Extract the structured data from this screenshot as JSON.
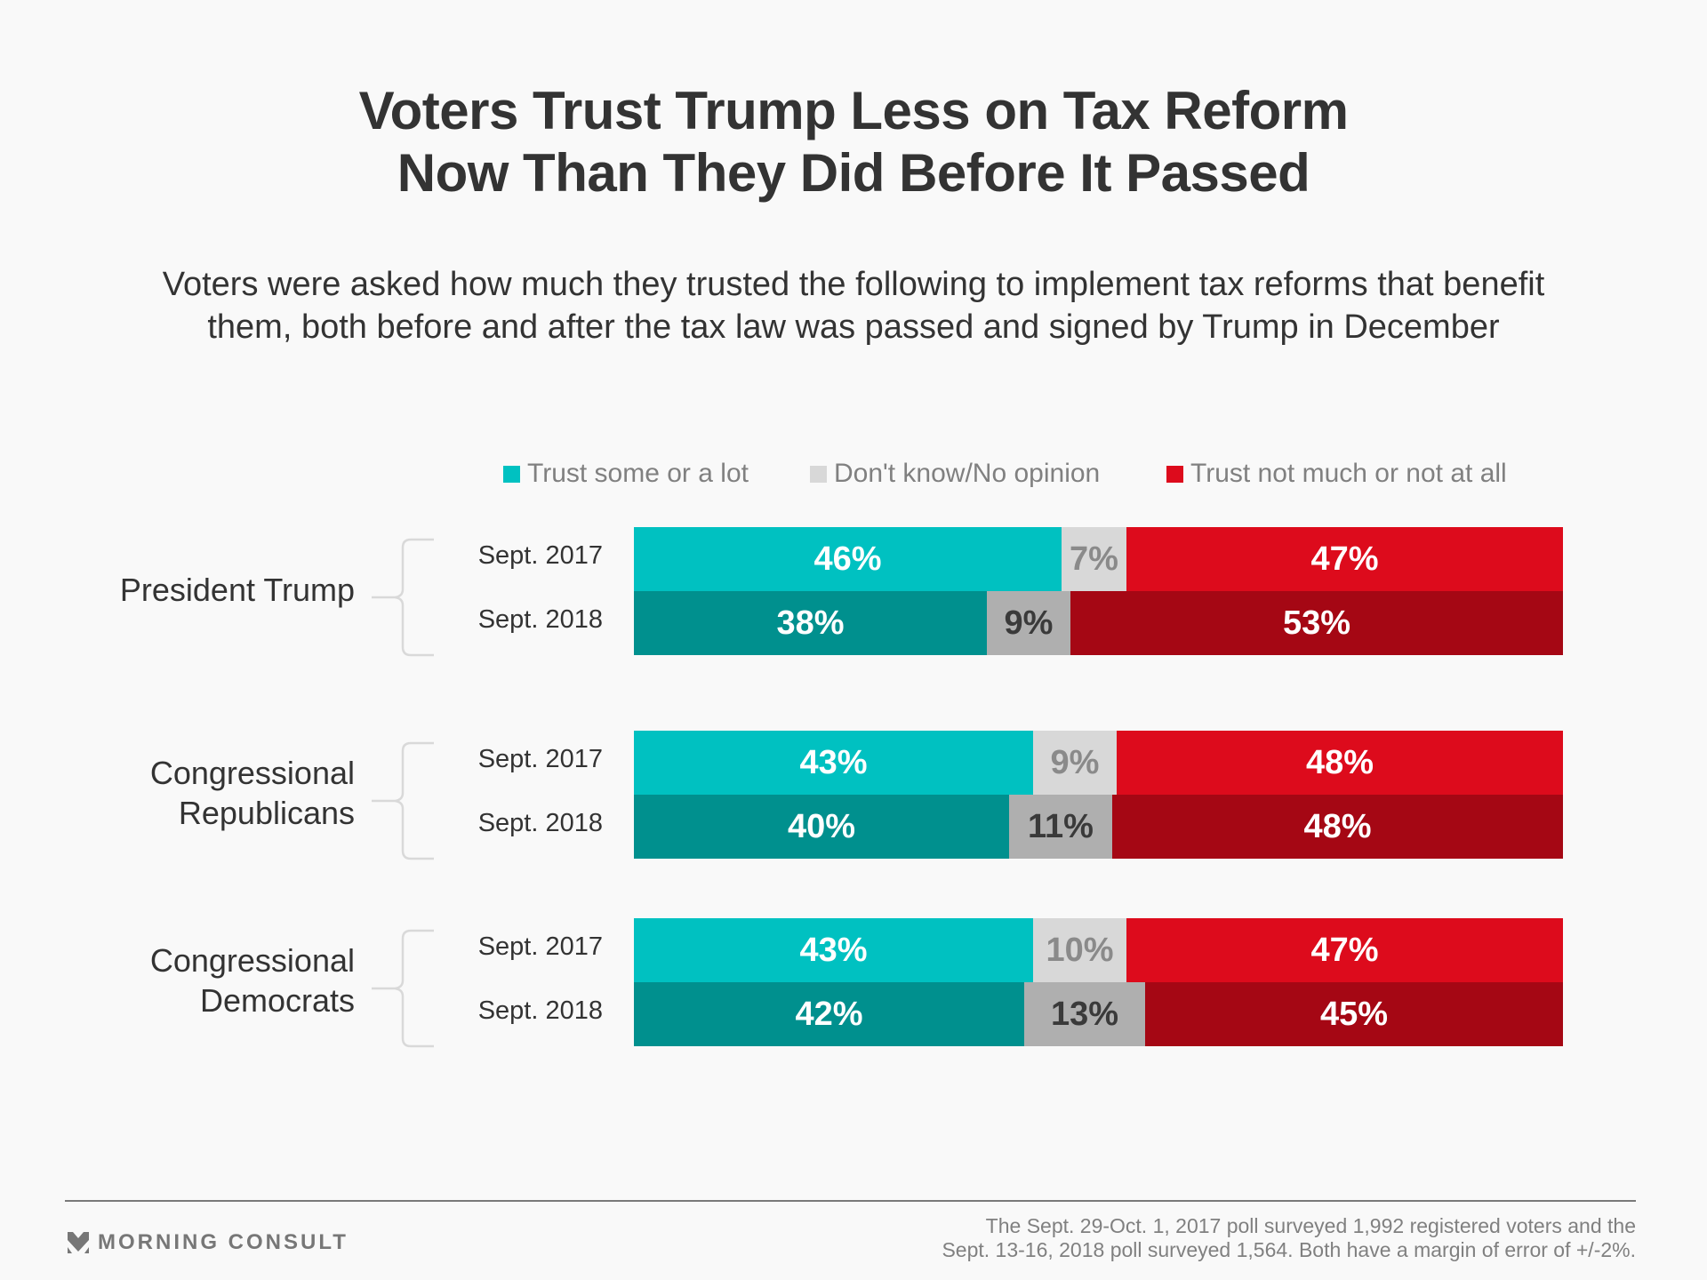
{
  "header": {
    "title_lines": [
      "Voters Trust Trump Less on Tax Reform",
      "Now Than They Did Before It Passed"
    ],
    "subtitle_lines": [
      "Voters were asked how much they trusted the following to implement tax reforms that benefit",
      "them, both before and after the tax law was passed and signed by Trump in December"
    ]
  },
  "colors": {
    "trust_2017": "#00C1C1",
    "trust_2018": "#00908E",
    "dontknow_2017": "#D8D8D8",
    "dontknow_2018": "#AFAFAF",
    "distrust_2017": "#DD0B1C",
    "distrust_2018": "#A50714",
    "dontknow_text_2017": "#8A8A8A",
    "dontknow_text_2018": "#3A3A3A",
    "label_text": "#FFFFFF"
  },
  "chart_data": {
    "type": "bar",
    "orientation": "horizontal",
    "stacked": true,
    "normalized": true,
    "title": "Voters Trust Trump Less on Tax Reform Now Than They Did Before It Passed",
    "subtitle": "Voters were asked how much they trusted the following to implement tax reforms that benefit them, both before and after the tax law was passed and signed by Trump in December",
    "legend": [
      "Trust some or a lot",
      "Don't know/No opinion",
      "Trust not much or not at all"
    ],
    "legend_position": "top",
    "unit": "%",
    "groups": [
      {
        "name": "President Trump",
        "label_lines": [
          "President Trump"
        ],
        "rows": [
          {
            "label": "Sept. 2017",
            "values": [
              46,
              7,
              47
            ],
            "labels": [
              "46%",
              "7%",
              "47%"
            ]
          },
          {
            "label": "Sept. 2018",
            "values": [
              38,
              9,
              53
            ],
            "labels": [
              "38%",
              "9%",
              "53%"
            ]
          }
        ]
      },
      {
        "name": "Congressional Republicans",
        "label_lines": [
          "Congressional",
          "Republicans"
        ],
        "rows": [
          {
            "label": "Sept. 2017",
            "values": [
              43,
              9,
              48
            ],
            "labels": [
              "43%",
              "9%",
              "48%"
            ]
          },
          {
            "label": "Sept. 2018",
            "values": [
              40,
              11,
              48
            ],
            "labels": [
              "40%",
              "11%",
              "48%"
            ]
          }
        ]
      },
      {
        "name": "Congressional Democrats",
        "label_lines": [
          "Congressional",
          "Democrats"
        ],
        "rows": [
          {
            "label": "Sept. 2017",
            "values": [
              43,
              10,
              47
            ],
            "labels": [
              "43%",
              "10%",
              "47%"
            ]
          },
          {
            "label": "Sept. 2018",
            "values": [
              42,
              13,
              45
            ],
            "labels": [
              "42%",
              "13%",
              "45%"
            ]
          }
        ]
      }
    ]
  },
  "footer": {
    "brand": "MORNING CONSULT",
    "logo_icon": "morning-consult-chevron-icon",
    "note_lines": [
      "The Sept. 29-Oct. 1, 2017 poll surveyed 1,992 registered voters and the",
      "Sept. 13-16, 2018 poll surveyed 1,564. Both have a margin of error of +/-2%."
    ]
  }
}
